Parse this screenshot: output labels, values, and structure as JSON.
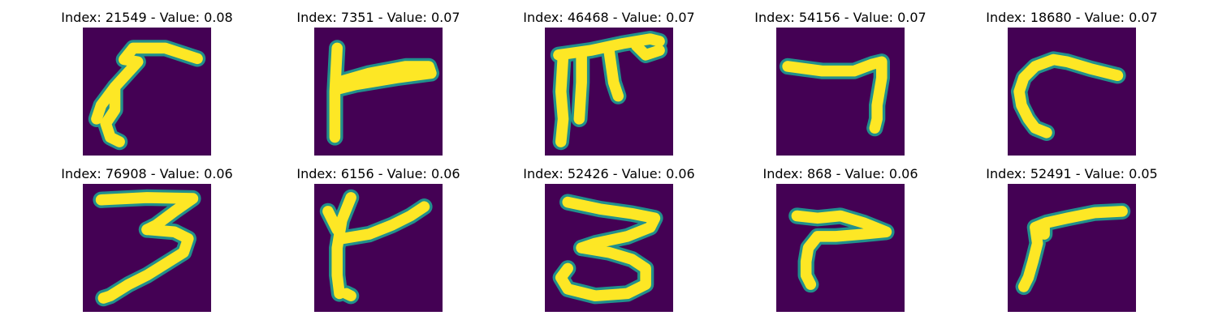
{
  "figure": {
    "background_color": "#440154",
    "stroke_color": "#fde725",
    "edge_color": "#21908c",
    "panels": [
      {
        "title": "Index: 21549 - Value: 0.08",
        "index": 21549,
        "value": 0.08
      },
      {
        "title": "Index: 7351 - Value: 0.07",
        "index": 7351,
        "value": 0.07
      },
      {
        "title": "Index: 46468 - Value: 0.07",
        "index": 46468,
        "value": 0.07
      },
      {
        "title": "Index: 54156 - Value: 0.07",
        "index": 54156,
        "value": 0.07
      },
      {
        "title": "Index: 18680 - Value: 0.07",
        "index": 18680,
        "value": 0.07
      },
      {
        "title": "Index: 76908 - Value: 0.06",
        "index": 76908,
        "value": 0.06
      },
      {
        "title": "Index: 6156 - Value: 0.06",
        "index": 6156,
        "value": 0.06
      },
      {
        "title": "Index: 52426 - Value: 0.06",
        "index": 52426,
        "value": 0.06
      },
      {
        "title": "Index: 868 - Value: 0.06",
        "index": 868,
        "value": 0.06
      },
      {
        "title": "Index: 52491 - Value: 0.05",
        "index": 52491,
        "value": 0.05
      }
    ]
  }
}
